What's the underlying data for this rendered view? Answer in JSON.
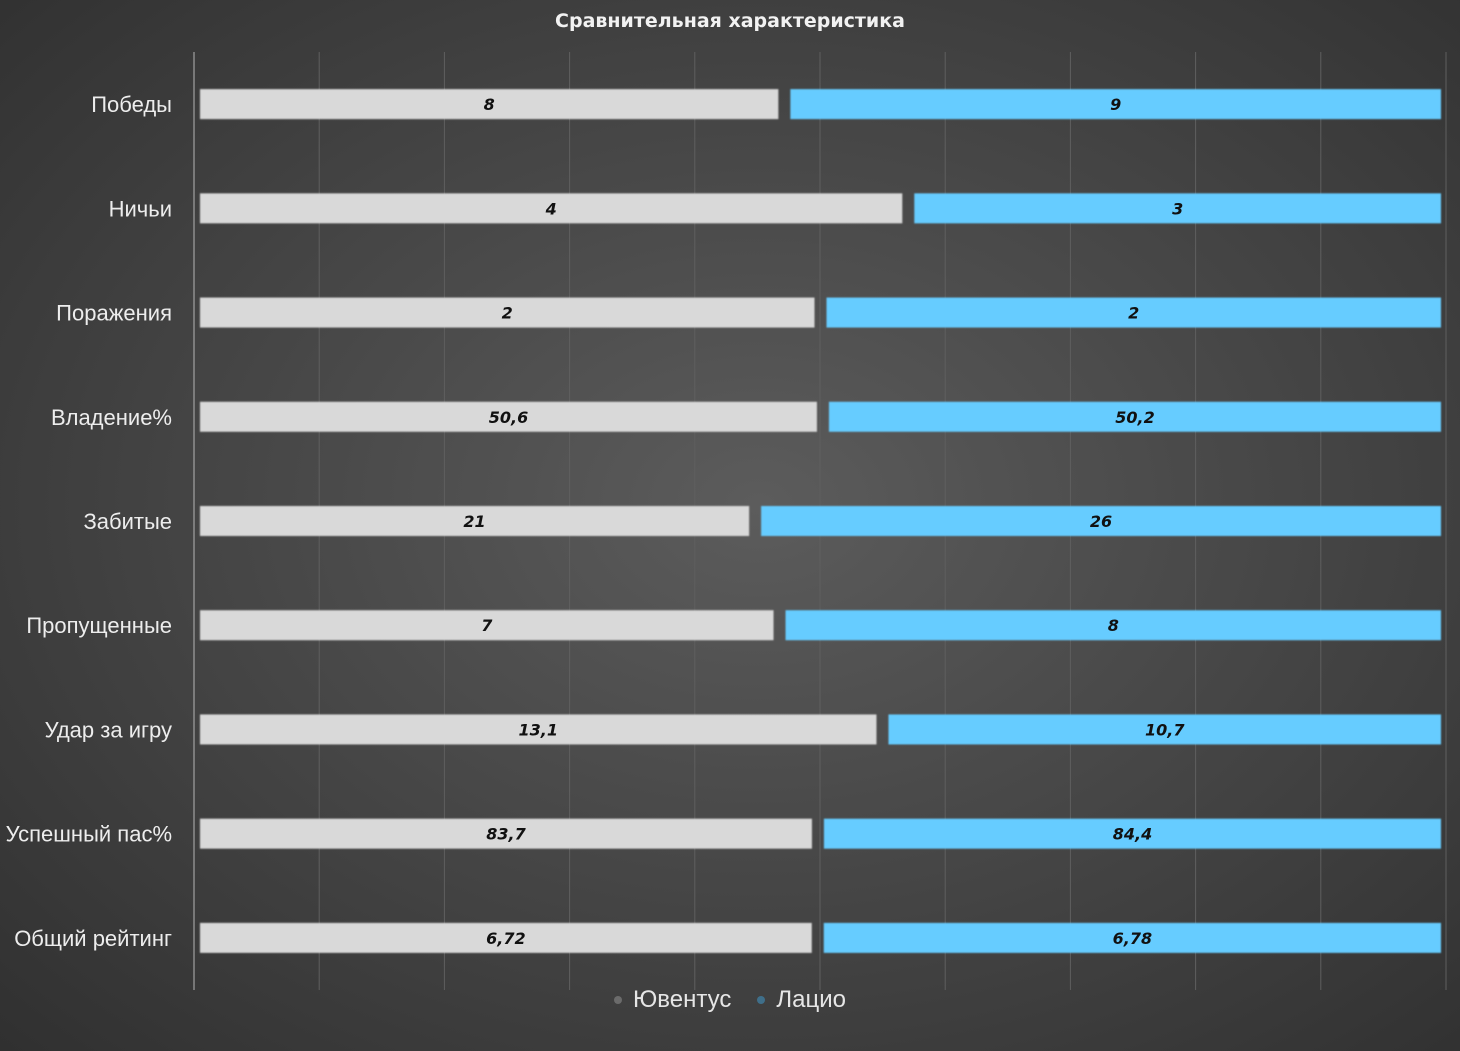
{
  "chart_data": {
    "type": "bar",
    "stacked": "100%",
    "orientation": "horizontal",
    "title": "Сравнительная характеристика",
    "categories": [
      "Победы",
      "Ничьи",
      "Поражения",
      "Владение%",
      "Забитые",
      "Пропущенные",
      "Удар за игру",
      "Успешный пас%",
      "Общий рейтинг"
    ],
    "series": [
      {
        "name": "Ювентус",
        "color": "#d9d9d9",
        "values": [
          8,
          4,
          2,
          50.6,
          21,
          7,
          13.1,
          83.7,
          6.72
        ],
        "labels": [
          "8",
          "4",
          "2",
          "50,6",
          "21",
          "7",
          "13,1",
          "83,7",
          "6,72"
        ]
      },
      {
        "name": "Лацио",
        "color": "#66ccff",
        "values": [
          9,
          3,
          2,
          50.2,
          26,
          8,
          10.7,
          84.4,
          6.78
        ],
        "labels": [
          "9",
          "3",
          "2",
          "50,2",
          "26",
          "8",
          "10,7",
          "84,4",
          "6,78"
        ]
      }
    ],
    "grid": true,
    "legend": "bottom",
    "xlabel": "",
    "ylabel": ""
  }
}
